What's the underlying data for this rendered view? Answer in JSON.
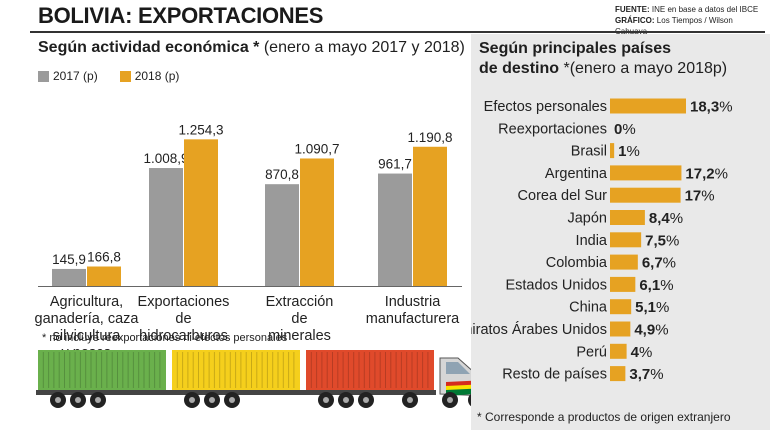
{
  "header": {
    "title": "BOLIVIA: EXPORTACIONES",
    "source_label": "FUENTE:",
    "source_text": "INE en base a datos del IBCE",
    "graphic_label": "GRÁFICO:",
    "graphic_text": "Los Tiempos / Wilson Cahuaya"
  },
  "left": {
    "subtitle_bold": "Según actividad económica *",
    "subtitle_rest": " (enero a mayo 2017 y 2018)",
    "note": "* no incluye reexportaciones ni efectos personales"
  },
  "right": {
    "subtitle_line1": "Según principales países",
    "subtitle_bold2": "de destino",
    "subtitle_rest2": " *(enero a mayo 2018p)",
    "note": "* Corresponde a productos de origen extranjero"
  },
  "colors": {
    "series_2017": "#9b9b9b",
    "series_2018": "#e6a222",
    "truck_green": "#6ab04c",
    "truck_yellow": "#f5cf1c",
    "truck_red": "#e04a2b"
  },
  "chart_data": [
    {
      "type": "bar",
      "title": "Según actividad económica * (enero a mayo 2017 y 2018)",
      "categories": [
        [
          "Agricultura,",
          "ganadería, caza",
          "silvicultura",
          "y pesca"
        ],
        [
          "Exportaciones",
          "de",
          "hidrocarburos"
        ],
        [
          "Extracción",
          "de",
          "minerales"
        ],
        [
          "Industria",
          "manufacturera"
        ]
      ],
      "series": [
        {
          "name": "2017 (p)",
          "values": [
            145.9,
            1008.9,
            870.8,
            961.7
          ],
          "labels": [
            "145,9",
            "1.008,9",
            "870,8",
            "961,7"
          ]
        },
        {
          "name": "2018 (p)",
          "values": [
            166.8,
            1254.3,
            1090.7,
            1190.8
          ],
          "labels": [
            "166,8",
            "1.254,3",
            "1.090,7",
            "1.190,8"
          ]
        }
      ],
      "ylim": [
        0,
        1300
      ]
    },
    {
      "type": "bar",
      "orientation": "horizontal",
      "title": "Según principales países de destino *(enero a mayo 2018p)",
      "categories": [
        "Efectos personales",
        "Reexportaciones",
        "Brasil",
        "Argentina",
        "Corea del Sur",
        "Japón",
        "India",
        "Colombia",
        "Estados Unidos",
        "China",
        "Emiratos Árabes Unidos",
        "Perú",
        "Resto de países"
      ],
      "values": [
        18.3,
        0,
        1,
        17.2,
        17,
        8.4,
        7.5,
        6.7,
        6.1,
        5.1,
        4.9,
        4,
        3.7
      ],
      "labels": [
        "18,3%",
        "0%",
        "1%",
        "17,2%",
        "17%",
        "8,4%",
        "7,5%",
        "6,7%",
        "6,1%",
        "5,1%",
        "4,9%",
        "4%",
        "3,7%"
      ],
      "xlim": [
        0,
        20
      ]
    }
  ]
}
